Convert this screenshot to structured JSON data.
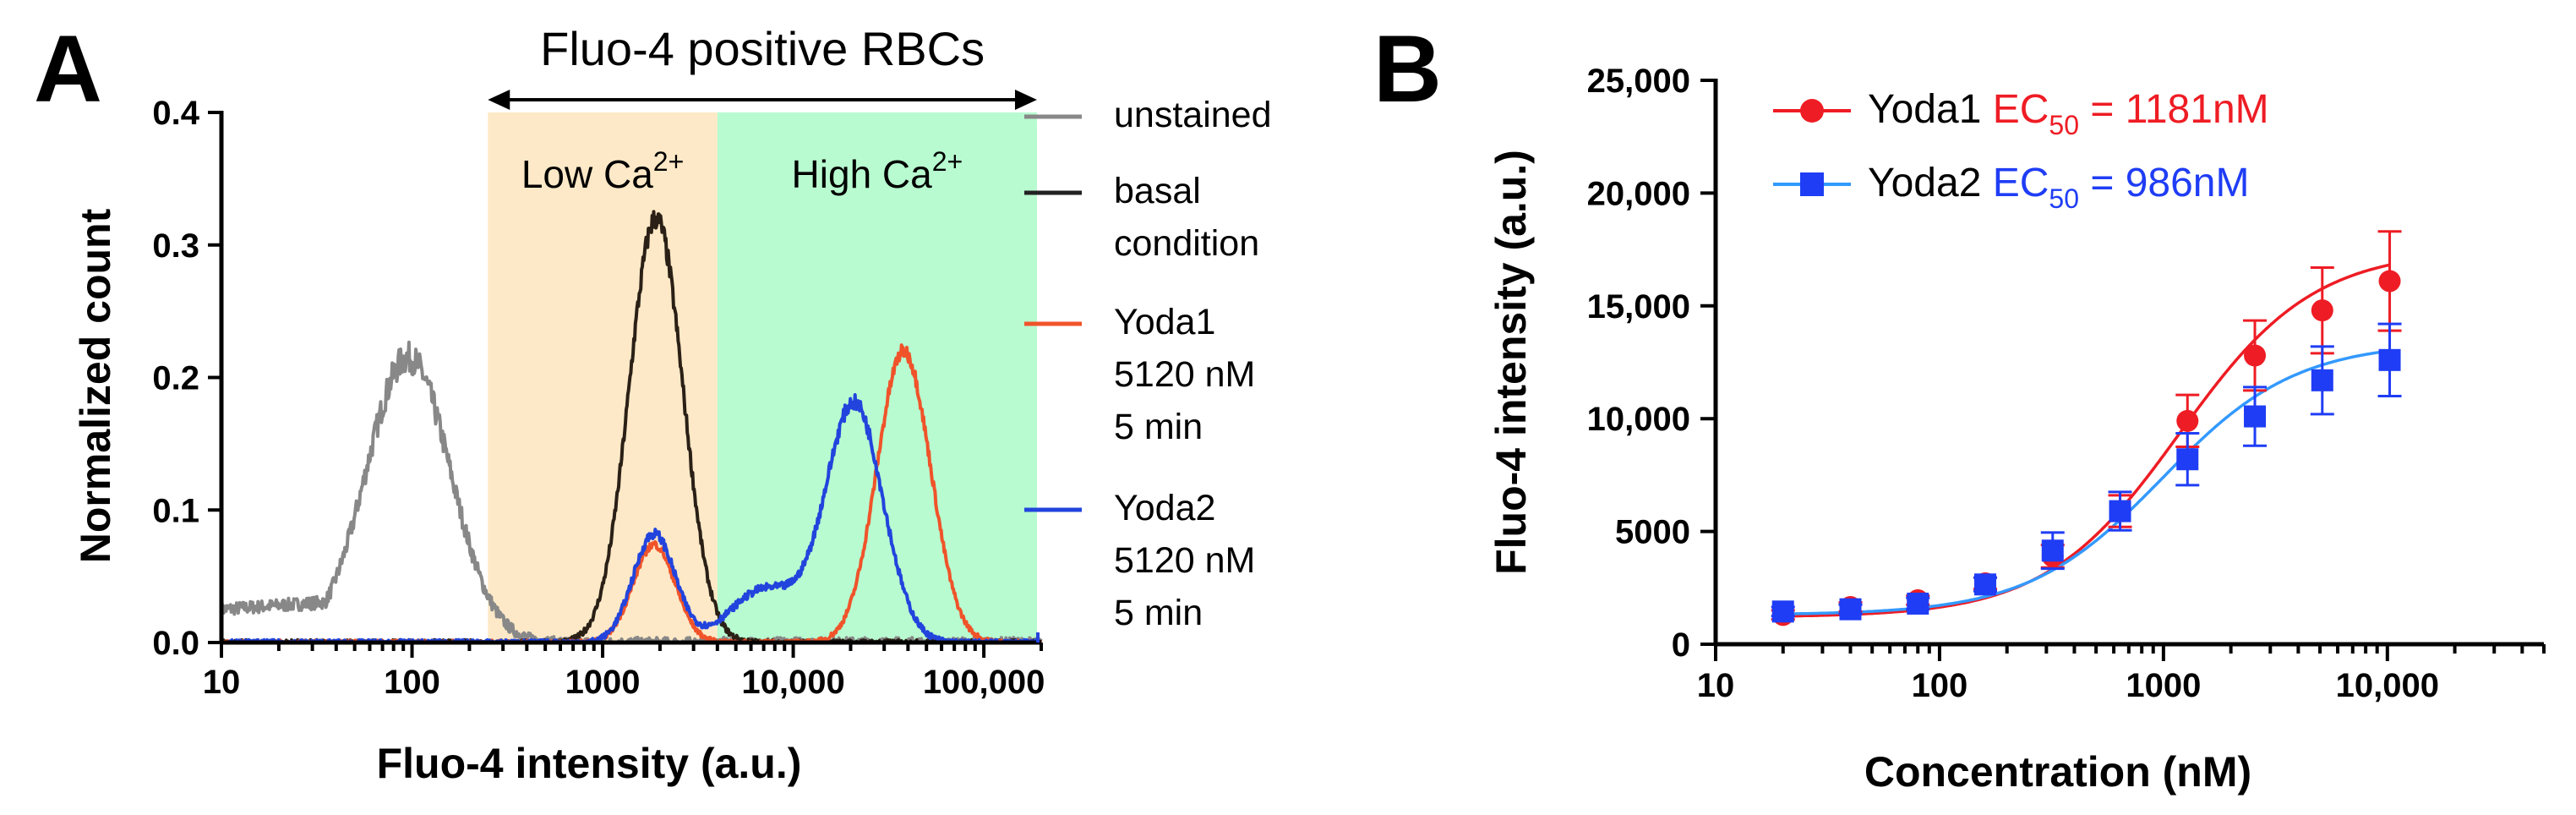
{
  "chart_data": [
    {
      "panel": "A",
      "type": "line",
      "title": "",
      "xlabel": "Fluo-4 intensity (a.u.)",
      "ylabel": "Normalized count",
      "xscale": "log",
      "xlim": [
        10,
        200000
      ],
      "ylim": [
        0,
        0.4
      ],
      "xticks": [
        10,
        100,
        1000,
        10000,
        100000
      ],
      "xtick_labels": [
        "10",
        "100",
        "1000",
        "10,000",
        "100,000"
      ],
      "yticks": [
        0.0,
        0.1,
        0.2,
        0.3,
        0.4
      ],
      "ytick_labels": [
        "0.0",
        "0.1",
        "0.2",
        "0.3",
        "0.4"
      ],
      "annotations": {
        "span_label": "Fluo-4 positive RBCs",
        "low_region": {
          "label": "Low Ca",
          "sup": "2+",
          "range": [
            250,
            4000
          ],
          "color": "#fde9c7"
        },
        "high_region": {
          "label": "High Ca",
          "sup": "2+",
          "range": [
            4000,
            190000
          ],
          "color": "#b8fbd0"
        }
      },
      "legend": [
        {
          "lines": [
            "unstained"
          ],
          "color": "#888888"
        },
        {
          "lines": [
            "basal",
            "condition"
          ],
          "color": "#222222"
        },
        {
          "lines": [
            "Yoda1",
            "5120 nM",
            "5 min"
          ],
          "color": "#f0532a"
        },
        {
          "lines": [
            "Yoda2",
            "5120 nM",
            "5 min"
          ],
          "color": "#2244dd"
        }
      ],
      "series": [
        {
          "name": "unstained",
          "color": "#888888",
          "components": [
            {
              "peak": 0.215,
              "mu": 1.98,
              "sigma": 0.22
            }
          ],
          "noise": 0.011,
          "floor_until": 1.6
        },
        {
          "name": "basal condition",
          "color": "#2b2016",
          "components": [
            {
              "peak": 0.32,
              "mu": 3.28,
              "sigma": 0.14
            }
          ],
          "noise": 0.006
        },
        {
          "name": "Yoda1 5120 nM 5 min",
          "color": "#f0532a",
          "components": [
            {
              "peak": 0.074,
              "mu": 3.27,
              "sigma": 0.11
            },
            {
              "peak": 0.22,
              "mu": 4.58,
              "sigma": 0.14
            }
          ],
          "noise": 0.005
        },
        {
          "name": "Yoda2 5120 nM 5 min",
          "color": "#2244dd",
          "components": [
            {
              "peak": 0.082,
              "mu": 3.27,
              "sigma": 0.11
            },
            {
              "peak": 0.04,
              "mu": 3.85,
              "sigma": 0.18
            },
            {
              "peak": 0.18,
              "mu": 4.32,
              "sigma": 0.15
            }
          ],
          "noise": 0.006
        }
      ]
    },
    {
      "panel": "B",
      "type": "scatter",
      "title": "",
      "xlabel": "Concentration (nM)",
      "ylabel": "Fluo-4 intensity (a.u.)",
      "xscale": "log",
      "xlim": [
        10,
        50000
      ],
      "ylim": [
        0,
        25000
      ],
      "xticks": [
        10,
        100,
        1000,
        10000
      ],
      "xtick_labels": [
        "10",
        "100",
        "1000",
        "10,000"
      ],
      "yticks": [
        0,
        5000,
        10000,
        15000,
        20000,
        25000
      ],
      "ytick_labels": [
        "0",
        "5000",
        "10,000",
        "15,000",
        "20,000",
        "25,000"
      ],
      "x": [
        20,
        40,
        80,
        160,
        320,
        640,
        1280,
        2560,
        5120,
        10240
      ],
      "series": [
        {
          "name": "Yoda1",
          "ec50_label": "EC",
          "ec50_sub": "50",
          "ec50_value": " = 1181nM",
          "color": "#ee1c24",
          "marker": "circle",
          "values": [
            1300,
            1650,
            1950,
            2700,
            3900,
            5900,
            9900,
            12800,
            14800,
            16100
          ],
          "errors": [
            200,
            200,
            200,
            250,
            500,
            700,
            1150,
            1550,
            1900,
            2200
          ],
          "fit": {
            "bottom": 1200,
            "top": 17500,
            "ec50": 1181,
            "hill": 1.45
          }
        },
        {
          "name": "Yoda2",
          "ec50_label": "EC",
          "ec50_sub": "50",
          "ec50_value": " = 986nM",
          "color": "#1f3df5",
          "marker": "square",
          "values": [
            1450,
            1550,
            1800,
            2650,
            4150,
            5900,
            8200,
            10100,
            11700,
            12600
          ],
          "errors": [
            200,
            200,
            250,
            300,
            800,
            850,
            1150,
            1300,
            1500,
            1600
          ],
          "fit": {
            "bottom": 1300,
            "top": 13400,
            "ec50": 986,
            "hill": 1.45
          },
          "fit_color": "#3399ff"
        }
      ]
    }
  ]
}
